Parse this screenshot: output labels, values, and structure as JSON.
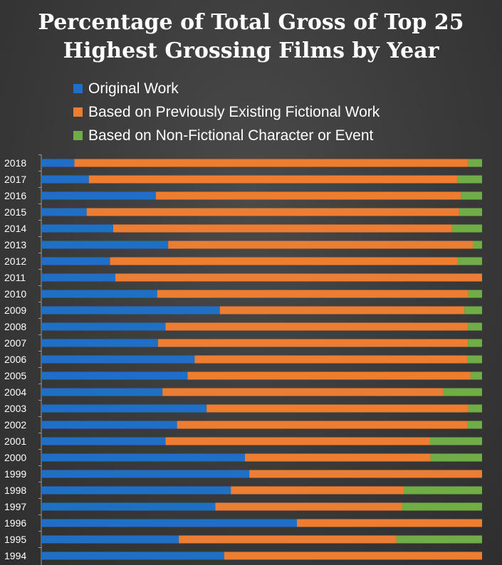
{
  "chart_data": {
    "type": "bar",
    "orientation": "horizontal",
    "stacked": true,
    "percent_stacked": true,
    "title": "Percentage of Total Gross of Top 25 Highest Grossing Films by Year",
    "categories": [
      "2018",
      "2017",
      "2016",
      "2015",
      "2014",
      "2013",
      "2012",
      "2011",
      "2010",
      "2009",
      "2008",
      "2007",
      "2006",
      "2005",
      "2004",
      "2003",
      "2002",
      "2001",
      "2000",
      "1999",
      "1998",
      "1997",
      "1996",
      "1995",
      "1994"
    ],
    "series": [
      {
        "name": "Original Work",
        "color": "#1f6fc6",
        "values": [
          7.5,
          10.8,
          26,
          10.3,
          16.3,
          28.8,
          15.6,
          16.8,
          26.3,
          40.5,
          28.2,
          26.5,
          34.8,
          33.2,
          27.5,
          37.5,
          30.8,
          28.2,
          46.2,
          47.2,
          43,
          39.5,
          58,
          31.2,
          41.5
        ]
      },
      {
        "name": "Based on Previously Existing Fictional Work",
        "color": "#ed7d31",
        "values": [
          89.4,
          83.6,
          69.2,
          84.5,
          76.9,
          69.1,
          78.9,
          83.2,
          70.6,
          55.5,
          68.6,
          70.3,
          61.8,
          64.2,
          63.6,
          59.4,
          65.9,
          60,
          42.1,
          52.8,
          39.3,
          42.4,
          42,
          49.4,
          58.5
        ]
      },
      {
        "name": "Based on Non-Fictional Character or Event",
        "color": "#70ad47",
        "values": [
          3.1,
          5.6,
          4.8,
          5.2,
          6.8,
          2.1,
          5.5,
          0,
          3.1,
          4,
          3.2,
          3.2,
          3.4,
          2.6,
          8.9,
          3.1,
          3.3,
          11.8,
          11.7,
          0,
          17.7,
          18.1,
          0,
          19.4,
          0
        ]
      }
    ],
    "xlim": [
      0,
      100
    ],
    "legend_position": "top-left",
    "grid": false
  }
}
